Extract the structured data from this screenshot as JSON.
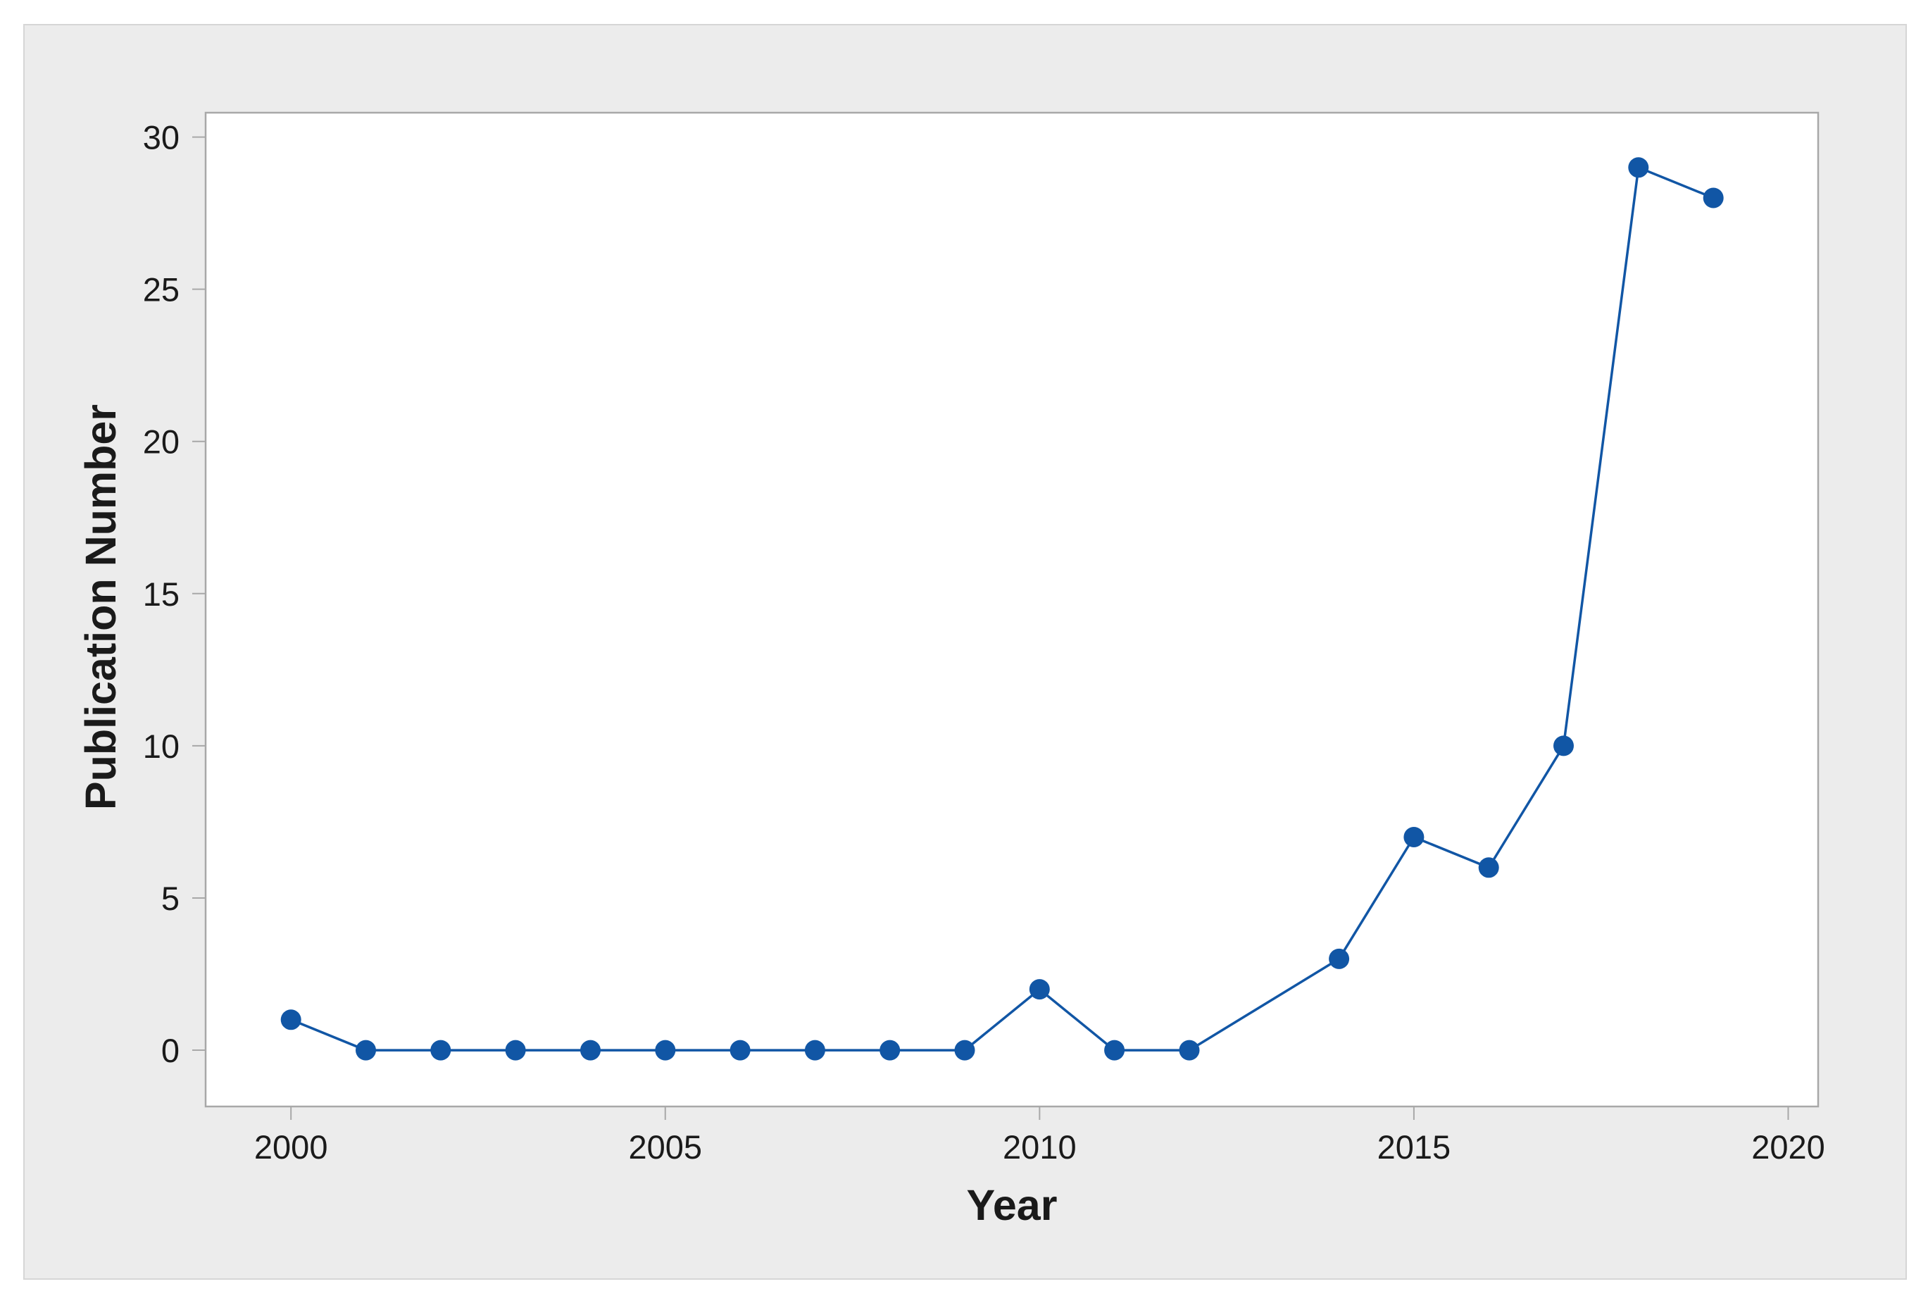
{
  "figure": {
    "background": "#FFFFFF",
    "panel_background": "#ECECEC",
    "panel_border": "#D6D6D6"
  },
  "chart_data": {
    "type": "line",
    "title": "",
    "xlabel": "Year",
    "ylabel": "Publication Number",
    "x": [
      2000,
      2001,
      2002,
      2003,
      2004,
      2005,
      2006,
      2007,
      2008,
      2009,
      2010,
      2011,
      2012,
      2014,
      2015,
      2016,
      2017,
      2018,
      2019
    ],
    "values": [
      1,
      0,
      0,
      0,
      0,
      0,
      0,
      0,
      0,
      0,
      2,
      0,
      0,
      3,
      7,
      6,
      10,
      29,
      28
    ],
    "points": [
      {
        "year": 2000,
        "value": 1
      },
      {
        "year": 2001,
        "value": 0
      },
      {
        "year": 2002,
        "value": 0
      },
      {
        "year": 2003,
        "value": 0
      },
      {
        "year": 2004,
        "value": 0
      },
      {
        "year": 2005,
        "value": 0
      },
      {
        "year": 2006,
        "value": 0
      },
      {
        "year": 2007,
        "value": 0
      },
      {
        "year": 2008,
        "value": 0
      },
      {
        "year": 2009,
        "value": 0
      },
      {
        "year": 2010,
        "value": 2
      },
      {
        "year": 2011,
        "value": 0
      },
      {
        "year": 2012,
        "value": 0
      },
      {
        "year": 2014,
        "value": 3
      },
      {
        "year": 2015,
        "value": 7
      },
      {
        "year": 2016,
        "value": 6
      },
      {
        "year": 2017,
        "value": 10
      },
      {
        "year": 2018,
        "value": 29
      },
      {
        "year": 2019,
        "value": 28
      }
    ],
    "missing_years": [
      2013
    ],
    "x_ticks": [
      2000,
      2005,
      2010,
      2015,
      2020
    ],
    "y_ticks": [
      0,
      5,
      10,
      15,
      20,
      25,
      30
    ],
    "xlim": [
      1998.86,
      2020.4
    ],
    "ylim": [
      -1.85,
      30.8
    ],
    "grid": false,
    "legend": null,
    "marker": "circle",
    "series_color": "#1156A5",
    "plot_background": "#FFFFFF",
    "axis_color": "#A8A8A8",
    "text_color": "#1A1A1A"
  }
}
